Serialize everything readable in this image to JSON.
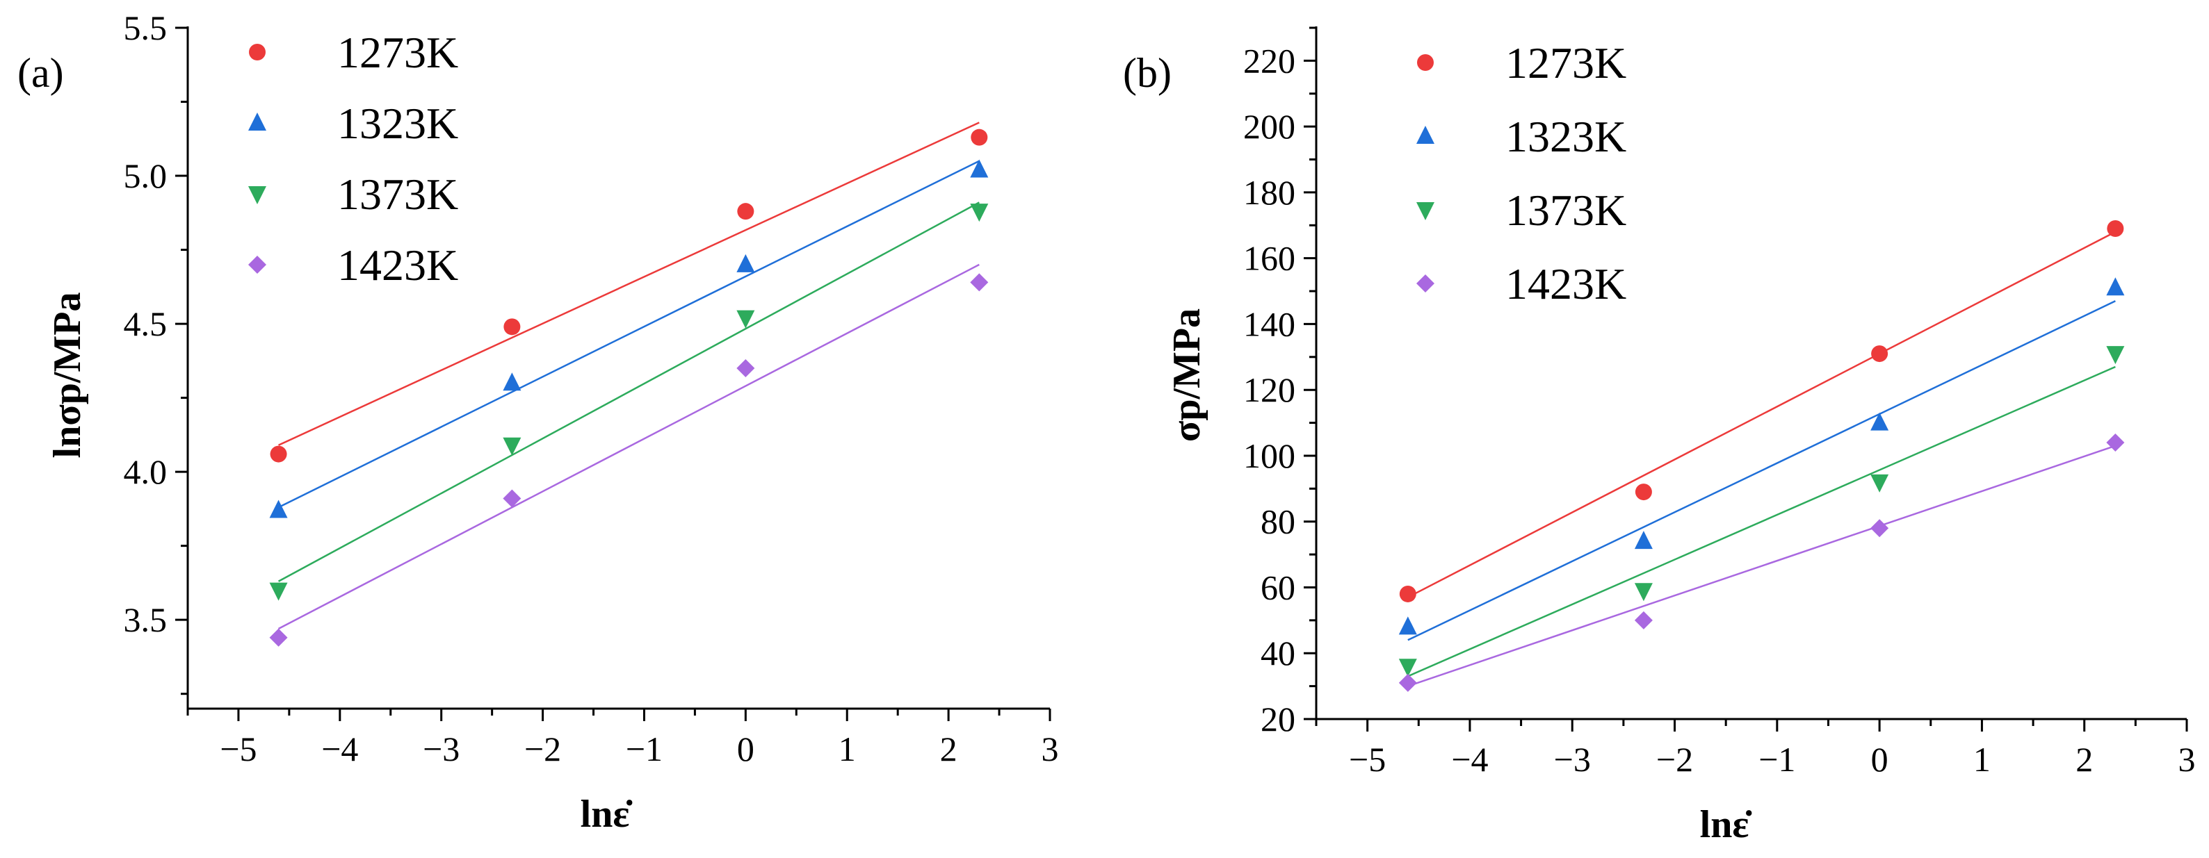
{
  "chart_data": [
    {
      "type": "scatter",
      "panel_label": "(a)",
      "xlabel": "lnε̇",
      "ylabel": "lnσp/MPa",
      "xlim": [
        -5.5,
        3
      ],
      "ylim": [
        3.2,
        5.5
      ],
      "xticks": [
        -5,
        -4,
        -3,
        -2,
        -1,
        0,
        1,
        2,
        3
      ],
      "yticks": [
        3.5,
        4.0,
        4.5,
        5.0,
        5.5
      ],
      "xtick_labels": [
        "−5",
        "−4",
        "−3",
        "−2",
        "−1",
        "0",
        "1",
        "2",
        "3"
      ],
      "ytick_labels": [
        "3.5",
        "4.0",
        "4.5",
        "5.0",
        "5.5"
      ],
      "legend_position": "top-left",
      "x": [
        -4.605,
        -2.303,
        0,
        2.303
      ],
      "series": [
        {
          "name": "1273K",
          "marker": "circle",
          "color": "#ec3a3a",
          "values": [
            4.06,
            4.49,
            4.88,
            5.13
          ],
          "fit": [
            4.09,
            5.18
          ]
        },
        {
          "name": "1323K",
          "marker": "triangle-up",
          "color": "#1f6fd8",
          "values": [
            3.87,
            4.3,
            4.7,
            5.02
          ],
          "fit": [
            3.88,
            5.05
          ]
        },
        {
          "name": "1373K",
          "marker": "triangle-down",
          "color": "#2dab5c",
          "values": [
            3.6,
            4.09,
            4.52,
            4.88
          ],
          "fit": [
            3.63,
            4.91
          ]
        },
        {
          "name": "1423K",
          "marker": "diamond",
          "color": "#a968e0",
          "values": [
            3.44,
            3.91,
            4.35,
            4.64
          ],
          "fit": [
            3.47,
            4.7
          ]
        }
      ]
    },
    {
      "type": "scatter",
      "panel_label": "(b)",
      "xlabel": "lnε̇",
      "ylabel": "σp/MPa",
      "xlim": [
        -5.5,
        3
      ],
      "ylim": [
        20,
        230
      ],
      "xticks": [
        -5,
        -4,
        -3,
        -2,
        -1,
        0,
        1,
        2,
        3
      ],
      "yticks": [
        20,
        40,
        60,
        80,
        100,
        120,
        140,
        160,
        180,
        200,
        220
      ],
      "xtick_labels": [
        "−5",
        "−4",
        "−3",
        "−2",
        "−1",
        "0",
        "1",
        "2",
        "3"
      ],
      "ytick_labels": [
        "20",
        "40",
        "60",
        "80",
        "100",
        "120",
        "140",
        "160",
        "180",
        "200",
        "220"
      ],
      "legend_position": "top-left",
      "x": [
        -4.605,
        -2.303,
        0,
        2.303
      ],
      "series": [
        {
          "name": "1273K",
          "marker": "circle",
          "color": "#ec3a3a",
          "values": [
            58,
            89,
            131,
            169
          ],
          "fit": [
            57,
            168
          ]
        },
        {
          "name": "1323K",
          "marker": "triangle-up",
          "color": "#1f6fd8",
          "values": [
            48,
            74,
            110,
            151
          ],
          "fit": [
            44,
            147
          ]
        },
        {
          "name": "1373K",
          "marker": "triangle-down",
          "color": "#2dab5c",
          "values": [
            36,
            59,
            92,
            131
          ],
          "fit": [
            33,
            127
          ]
        },
        {
          "name": "1423K",
          "marker": "diamond",
          "color": "#a968e0",
          "values": [
            31,
            50,
            78,
            104
          ],
          "fit": [
            30,
            103
          ]
        }
      ]
    }
  ]
}
